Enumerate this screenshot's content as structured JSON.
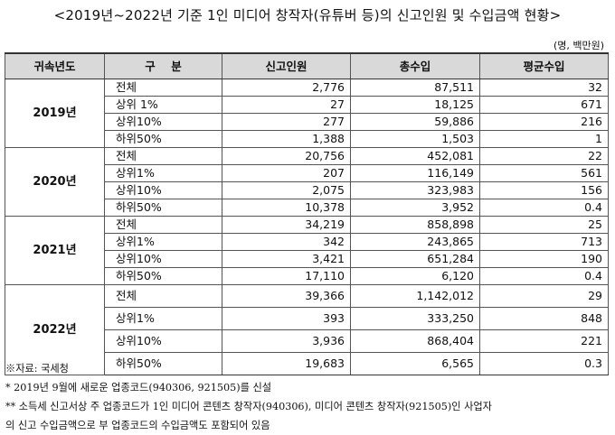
{
  "title": "<2019년~2022년 기준 1인 미디어 창작자(유튜버 등)의 신고인원 및 수입금액 현황>",
  "unit": "(명, 백만원)",
  "headers": [
    "귀속년도",
    "구    분",
    "신고인원",
    "총수입",
    "평균수입"
  ],
  "rows": [
    {
      "year": "2019년",
      "items": [
        {
          "cat": "전체",
          "count": "2,776",
          "income": "87,511",
          "avg": "32"
        },
        {
          "cat": "상위 1%",
          "count": "27",
          "income": "18,125",
          "avg": "671"
        },
        {
          "cat": "상위10%",
          "count": "277",
          "income": "59,886",
          "avg": "216"
        },
        {
          "cat": "하위50%",
          "count": "1,388",
          "income": "1,503",
          "avg": "1"
        }
      ]
    },
    {
      "year": "2020년",
      "items": [
        {
          "cat": "전체",
          "count": "20,756",
          "income": "452,081",
          "avg": "22"
        },
        {
          "cat": "상위1%",
          "count": "207",
          "income": "116,149",
          "avg": "561"
        },
        {
          "cat": "상위10%",
          "count": "2,075",
          "income": "323,983",
          "avg": "156"
        },
        {
          "cat": "하위50%",
          "count": "10,378",
          "income": "3,952",
          "avg": "0.4"
        }
      ]
    },
    {
      "year": "2021년",
      "items": [
        {
          "cat": "전체",
          "count": "34,219",
          "income": "858,898",
          "avg": "25"
        },
        {
          "cat": "상위1%",
          "count": "342",
          "income": "243,865",
          "avg": "713"
        },
        {
          "cat": "상위10%",
          "count": "3,421",
          "income": "651,284",
          "avg": "190"
        },
        {
          "cat": "하위50%",
          "count": "17,110",
          "income": "6,120",
          "avg": "0.4"
        }
      ]
    },
    {
      "year": "2022년",
      "items": [
        {
          "cat": "전체",
          "count": "39,366",
          "income": "1,142,012",
          "avg": "29"
        },
        {
          "cat": "상위1%",
          "count": "393",
          "income": "333,250",
          "avg": "848"
        },
        {
          "cat": "상위10%",
          "count": "3,936",
          "income": "868,404",
          "avg": "221"
        },
        {
          "cat": "하위50%",
          "count": "19,683",
          "income": "6,565",
          "avg": "0.3"
        }
      ]
    }
  ],
  "notes": [
    "※자료: 국세청",
    "* 2019년 9월에 새로운 업종코드(940306, 921505)를 신설",
    "** 소득세 신고서상 주 업종코드가 1인 미디어 콘텐츠 창작자(940306), 미디어 콘텐츠 창작자(921505)인 사업자",
    "의 신고 수입금액으로 부 업종코드의 수입금액도 포함되어 있음"
  ]
}
